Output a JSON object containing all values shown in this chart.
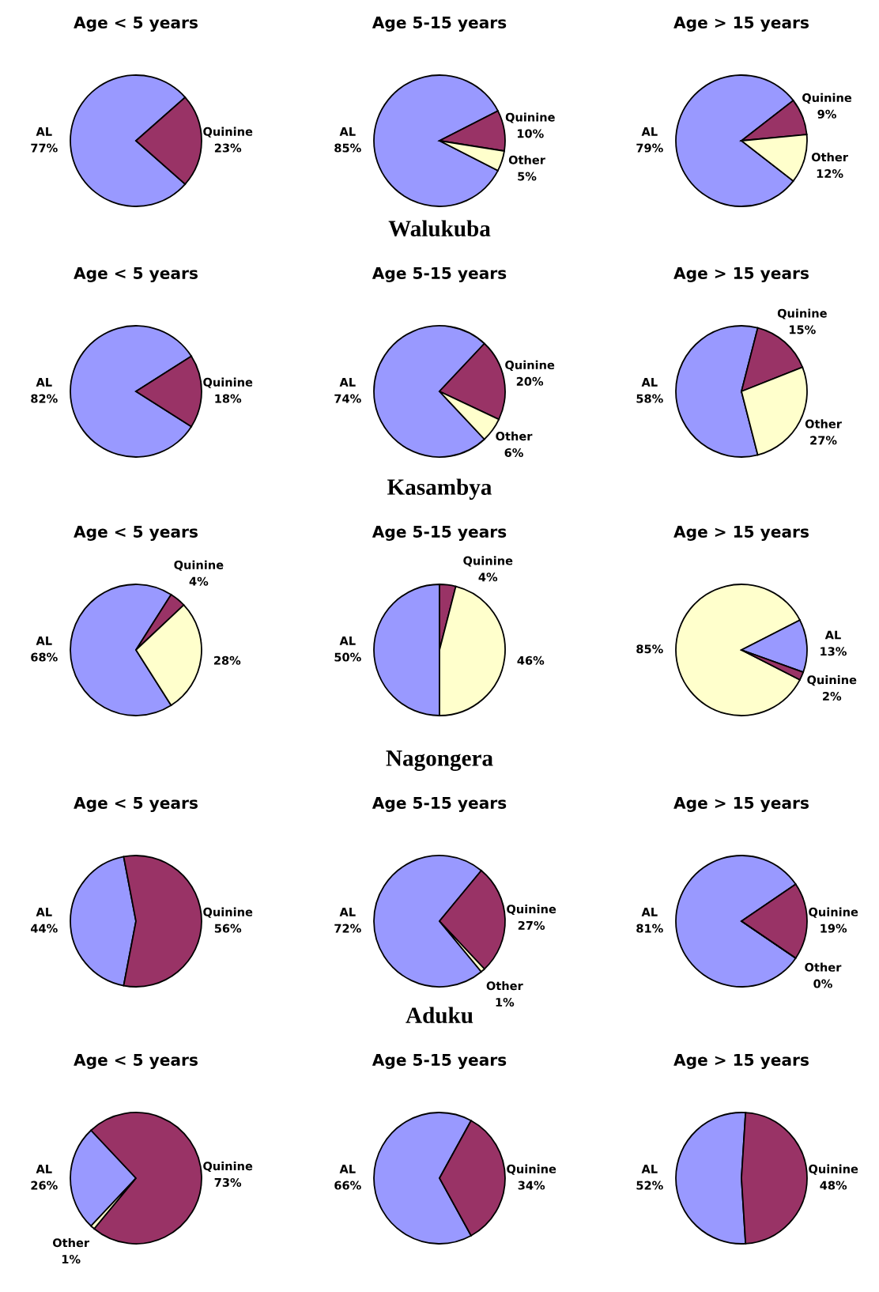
{
  "chart_data": [
    {
      "type": "pie",
      "title": "Age < 5 years",
      "categories": [
        "AL",
        "Quinine"
      ],
      "values": [
        77,
        23
      ],
      "colors": [
        "#9999ff",
        "#993366"
      ],
      "value_labels": [
        "77%",
        "23%"
      ],
      "data_labels": true
    },
    {
      "type": "pie",
      "title": "Age 5-15 years",
      "categories": [
        "AL",
        "Quinine",
        "Other"
      ],
      "values": [
        85,
        10,
        5
      ],
      "colors": [
        "#9999ff",
        "#993366",
        "#ffffcc"
      ],
      "value_labels": [
        "85%",
        "10%",
        "5%"
      ],
      "data_labels": true
    },
    {
      "type": "pie",
      "title": "Age > 15 years",
      "categories": [
        "AL",
        "Quinine",
        "Other"
      ],
      "values": [
        79,
        9,
        12
      ],
      "colors": [
        "#9999ff",
        "#993366",
        "#ffffcc"
      ],
      "value_labels": [
        "79%",
        "9%",
        "12%"
      ],
      "data_labels": true
    },
    {
      "type": "pie",
      "title": "Age < 5 years",
      "categories": [
        "AL",
        "Quinine"
      ],
      "values": [
        82,
        18
      ],
      "colors": [
        "#9999ff",
        "#993366"
      ],
      "value_labels": [
        "82%",
        "18%"
      ],
      "data_labels": true
    },
    {
      "type": "pie",
      "title": "Age 5-15 years",
      "annotations": [
        "Walukuba"
      ],
      "categories": [
        "AL",
        "Quinine",
        "Other"
      ],
      "values": [
        74,
        20,
        6
      ],
      "colors": [
        "#9999ff",
        "#993366",
        "#ffffcc"
      ],
      "value_labels": [
        "74%",
        "20%",
        "6%"
      ],
      "data_labels": true
    },
    {
      "type": "pie",
      "title": "Age > 15 years",
      "categories": [
        "AL",
        "Quinine",
        "Other"
      ],
      "values": [
        58,
        15,
        27
      ],
      "colors": [
        "#9999ff",
        "#993366",
        "#ffffcc"
      ],
      "value_labels": [
        "58%",
        "15%",
        "27%"
      ],
      "data_labels": true
    },
    {
      "type": "pie",
      "title": "Age < 5 years",
      "categories": [
        "AL",
        "Quinine",
        null
      ],
      "values": [
        68,
        4,
        28
      ],
      "colors": [
        "#9999ff",
        "#993366",
        "#ffffcc"
      ],
      "value_labels": [
        "68%",
        "4%",
        "28%"
      ],
      "data_labels": true
    },
    {
      "type": "pie",
      "title": "Age 5-15 years",
      "annotations": [
        "Kasambya"
      ],
      "categories": [
        "AL",
        "Quinine",
        null
      ],
      "values": [
        50,
        4,
        46
      ],
      "colors": [
        "#9999ff",
        "#993366",
        "#ffffcc"
      ],
      "value_labels": [
        "50%",
        "4%",
        "46%"
      ],
      "data_labels": true
    },
    {
      "type": "pie",
      "title": "Age > 15 years",
      "categories": [
        null,
        "AL",
        "Quinine"
      ],
      "values": [
        85,
        13,
        2
      ],
      "colors": [
        "#ffffcc",
        "#9999ff",
        "#993366"
      ],
      "value_labels": [
        "85%",
        "13%",
        "2%"
      ],
      "data_labels": true
    },
    {
      "type": "pie",
      "title": "Age < 5 years",
      "categories": [
        "AL",
        "Quinine"
      ],
      "values": [
        44,
        56
      ],
      "colors": [
        "#9999ff",
        "#993366"
      ],
      "value_labels": [
        "44%",
        "56%"
      ],
      "data_labels": true
    },
    {
      "type": "pie",
      "title": "Age 5-15 years",
      "annotations": [
        "Nagongera"
      ],
      "categories": [
        "AL",
        "Quinine",
        "Other"
      ],
      "values": [
        72,
        27,
        1
      ],
      "colors": [
        "#9999ff",
        "#993366",
        "#ffffcc"
      ],
      "value_labels": [
        "72%",
        "27%",
        "1%"
      ],
      "data_labels": true
    },
    {
      "type": "pie",
      "title": "Age > 15 years",
      "categories": [
        "AL",
        "Quinine",
        "Other"
      ],
      "values": [
        81,
        19,
        0
      ],
      "colors": [
        "#9999ff",
        "#993366",
        "#ffffcc"
      ],
      "value_labels": [
        "81%",
        "19%",
        "0%"
      ],
      "data_labels": true
    },
    {
      "type": "pie",
      "title": "Age < 5 years",
      "categories": [
        "AL",
        "Quinine",
        "Other"
      ],
      "values": [
        26,
        73,
        1
      ],
      "colors": [
        "#9999ff",
        "#993366",
        "#ffffcc"
      ],
      "value_labels": [
        "26%",
        "73%",
        "1%"
      ],
      "data_labels": true
    },
    {
      "type": "pie",
      "title": "Age 5-15 years",
      "annotations": [
        "Aduku"
      ],
      "categories": [
        "AL",
        "Quinine"
      ],
      "values": [
        66,
        34
      ],
      "colors": [
        "#9999ff",
        "#993366"
      ],
      "value_labels": [
        "66%",
        "34%"
      ],
      "data_labels": true
    },
    {
      "type": "pie",
      "title": "Age > 15 years",
      "categories": [
        "AL",
        "Quinine"
      ],
      "values": [
        52,
        48
      ],
      "colors": [
        "#9999ff",
        "#993366"
      ],
      "value_labels": [
        "52%",
        "48%"
      ],
      "data_labels": true
    }
  ]
}
